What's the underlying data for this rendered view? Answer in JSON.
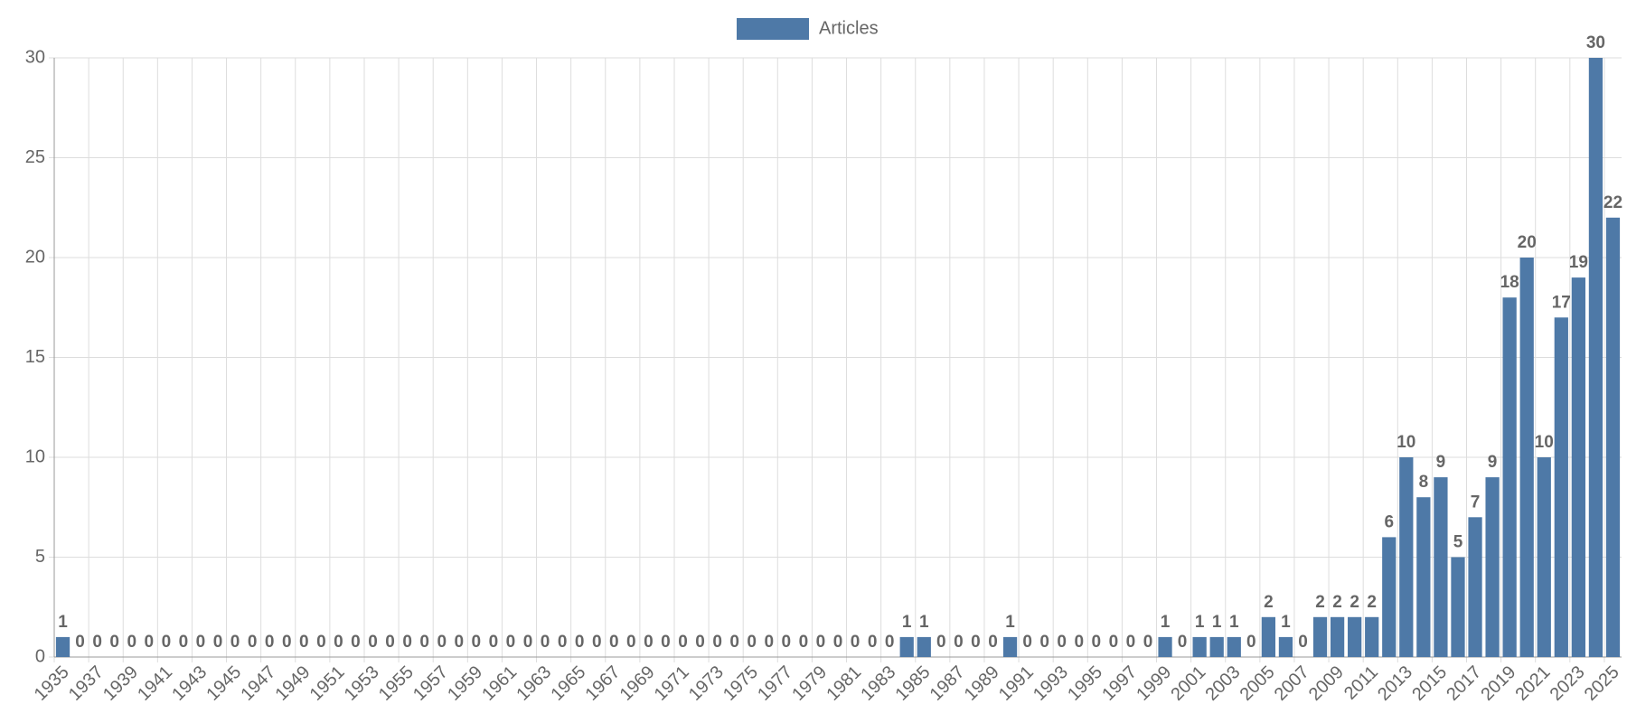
{
  "chart_data": {
    "type": "bar",
    "categories": [
      "1935",
      null,
      "1937",
      null,
      "1939",
      null,
      "1941",
      null,
      "1943",
      null,
      "1945",
      null,
      "1947",
      null,
      "1949",
      null,
      "1951",
      null,
      "1953",
      null,
      "1955",
      null,
      "1957",
      null,
      "1959",
      null,
      "1961",
      null,
      "1963",
      null,
      "1965",
      null,
      "1967",
      null,
      "1969",
      null,
      "1971",
      null,
      "1973",
      null,
      "1975",
      null,
      "1977",
      null,
      "1979",
      null,
      "1981",
      null,
      "1983",
      null,
      "1985",
      null,
      "1987",
      null,
      "1989",
      null,
      "1991",
      null,
      "1993",
      null,
      "1995",
      null,
      "1997",
      null,
      "1999",
      null,
      "2001",
      null,
      "2003",
      null,
      "2005",
      null,
      "2007",
      null,
      "2009",
      null,
      "2011",
      null,
      "2013",
      null,
      "2015",
      null,
      "2017",
      null,
      "2019",
      null,
      "2021",
      null,
      "2023",
      null,
      "2025"
    ],
    "series": [
      {
        "name": "Articles",
        "color": "#4e79a7",
        "values": [
          1,
          0,
          0,
          0,
          0,
          0,
          0,
          0,
          0,
          0,
          0,
          0,
          0,
          0,
          0,
          0,
          0,
          0,
          0,
          0,
          0,
          0,
          0,
          0,
          0,
          0,
          0,
          0,
          0,
          0,
          0,
          0,
          0,
          0,
          0,
          0,
          0,
          0,
          0,
          0,
          0,
          0,
          0,
          0,
          0,
          0,
          0,
          0,
          0,
          1,
          1,
          0,
          0,
          0,
          0,
          1,
          0,
          0,
          0,
          0,
          0,
          0,
          0,
          0,
          1,
          0,
          1,
          1,
          1,
          0,
          2,
          1,
          0,
          2,
          2,
          2,
          2,
          6,
          10,
          8,
          9,
          5,
          7,
          9,
          18,
          20,
          10,
          17,
          19,
          30,
          22
        ]
      }
    ],
    "ylim": [
      0,
      30
    ],
    "yticks": [
      0,
      5,
      10,
      15,
      20,
      25,
      30
    ],
    "grid": true,
    "legend": "top"
  }
}
